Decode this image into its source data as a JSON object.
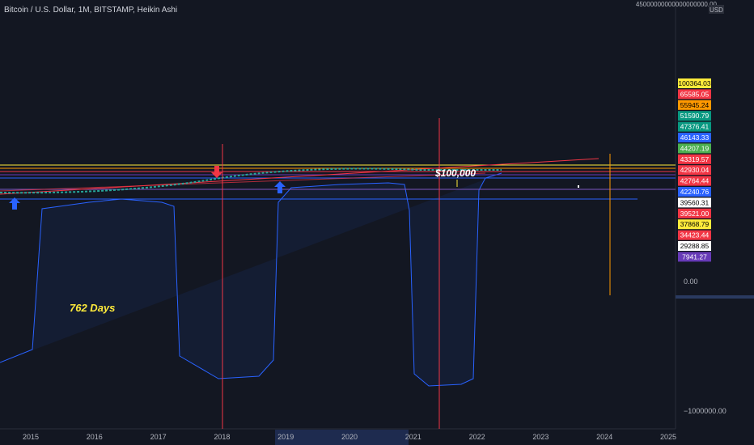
{
  "header": {
    "title": "Bitcoin / U.S. Dollar, 1M, BITSTAMP, Heikin Ashi"
  },
  "price_axis": {
    "currency": "USD",
    "top_label": "45000000000000000000.00",
    "zero_label": "0.00",
    "bottom_label": "−1000000.00",
    "price_labels": [
      {
        "text": "100364.03",
        "color": "#ffeb3b",
        "text_color": "#000"
      },
      {
        "text": "65585.05",
        "color": "#f23645",
        "text_color": "#fff"
      },
      {
        "text": "55945.24",
        "color": "#ff9800",
        "text_color": "#000"
      },
      {
        "text": "51590.79",
        "color": "#089981",
        "text_color": "#fff"
      },
      {
        "text": "47376.41",
        "color": "#089981",
        "text_color": "#fff"
      },
      {
        "text": "46143.33",
        "color": "#2962ff",
        "text_color": "#fff"
      },
      {
        "text": "44207.19",
        "color": "#4caf50",
        "text_color": "#fff"
      },
      {
        "text": "43319.57",
        "color": "#f23645",
        "text_color": "#fff"
      },
      {
        "text": "42930.04",
        "color": "#f23645",
        "text_color": "#fff"
      },
      {
        "text": "42764.44",
        "color": "#f23645",
        "text_color": "#fff"
      },
      {
        "text": "42240.76",
        "color": "#2962ff",
        "text_color": "#fff"
      },
      {
        "text": "39560.31",
        "color": "#ffffff",
        "text_color": "#000"
      },
      {
        "text": "39521.00",
        "color": "#f23645",
        "text_color": "#fff"
      },
      {
        "text": "37868.79",
        "color": "#ffeb3b",
        "text_color": "#000"
      },
      {
        "text": "34423.44",
        "color": "#f23645",
        "text_color": "#fff"
      },
      {
        "text": "29288.85",
        "color": "#ffffff",
        "text_color": "#000"
      },
      {
        "text": "7941.27",
        "color": "#673ab7",
        "text_color": "#fff"
      }
    ]
  },
  "time_axis": {
    "labels": [
      "2015",
      "2016",
      "2017",
      "2018",
      "2019",
      "2020",
      "2021",
      "2022",
      "2023",
      "2024",
      "2025"
    ]
  },
  "annotations": {
    "days": "762 Days",
    "target": "$100,000"
  }
}
